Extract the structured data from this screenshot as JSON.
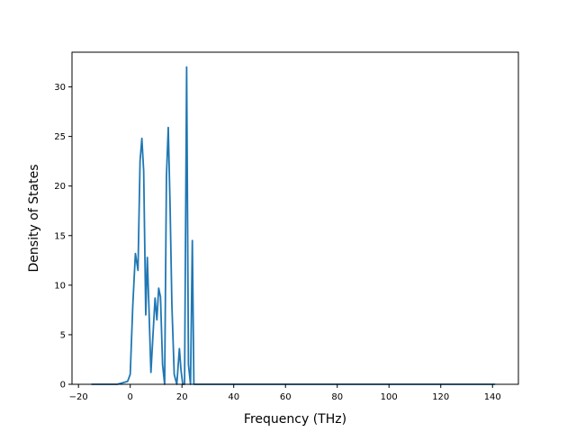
{
  "chart_data": {
    "type": "line",
    "title": "",
    "xlabel": "Frequency (THz)",
    "ylabel": "Density of States",
    "xlim": [
      -22.5,
      150
    ],
    "ylim": [
      0,
      33.5
    ],
    "xticks": [
      -20,
      0,
      20,
      40,
      60,
      80,
      100,
      120,
      140
    ],
    "yticks": [
      0,
      5,
      10,
      15,
      20,
      25,
      30
    ],
    "grid": false,
    "line_color": "#1f77b4",
    "series": [
      {
        "x": [
          -15,
          -5,
          -1,
          0,
          1,
          2,
          3,
          3.8,
          4.5,
          5.2,
          6.0,
          6.6,
          7.2,
          8.0,
          8.8,
          9.6,
          10.3,
          11,
          11.7,
          12.5,
          13.3,
          14.0,
          14.7,
          15.4,
          16.1,
          17,
          18,
          19,
          19.6,
          20.3,
          21,
          21.8,
          22.5,
          23.3,
          24.0,
          24.6,
          25.3,
          26.0,
          30,
          60,
          100,
          141
        ],
        "y": [
          0,
          0,
          0.3,
          1.0,
          8.0,
          13.2,
          11.5,
          22.5,
          24.8,
          21.5,
          7.0,
          12.8,
          8.0,
          1.2,
          5.0,
          8.7,
          6.5,
          9.7,
          8.8,
          2.0,
          0,
          21.0,
          25.9,
          18.0,
          8.0,
          1.0,
          0,
          3.6,
          1.5,
          0,
          0,
          32.0,
          2.0,
          0,
          14.5,
          0,
          0,
          0,
          0,
          0,
          0,
          0
        ]
      }
    ]
  }
}
